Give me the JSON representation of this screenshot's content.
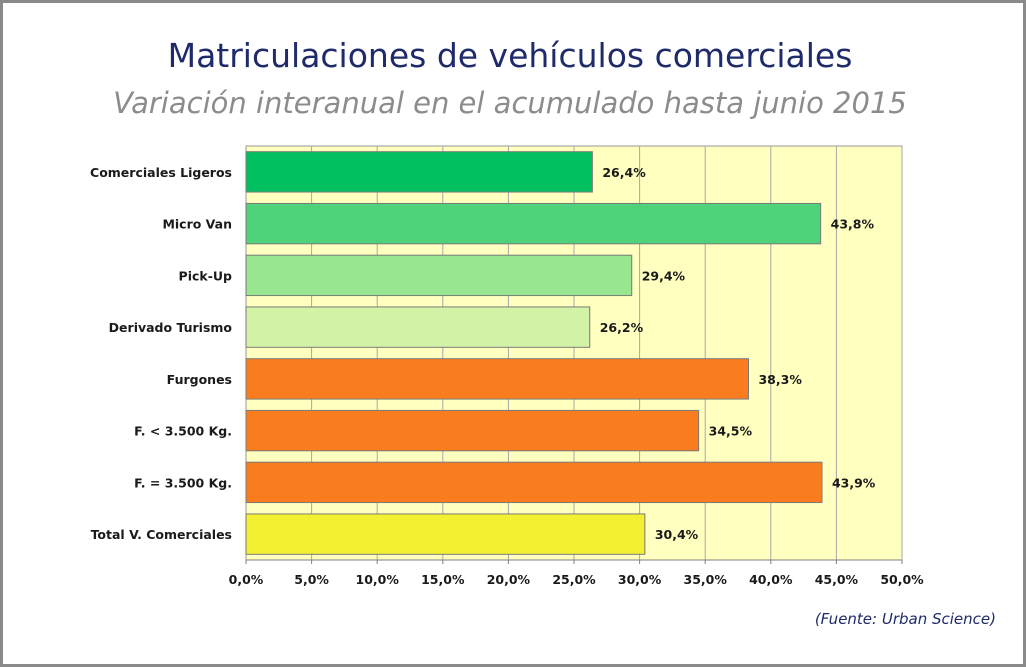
{
  "chart_data": {
    "type": "bar",
    "orientation": "horizontal",
    "title": "Matriculaciones de vehículos comerciales",
    "subtitle": "Variación interanual en el acumulado hasta junio 2015",
    "categories": [
      "Comerciales Ligeros",
      "Micro Van",
      "Pick-Up",
      "Derivado Turismo",
      "Furgones",
      "F. < 3.500 Kg.",
      "F. = 3.500 Kg.",
      "Total V. Comerciales"
    ],
    "values": [
      26.4,
      43.8,
      29.4,
      26.2,
      38.3,
      34.5,
      43.9,
      30.4
    ],
    "data_labels": [
      "26,4%",
      "43,8%",
      "29,4%",
      "26,2%",
      "38,3%",
      "34,5%",
      "43,9%",
      "30,4%"
    ],
    "bar_colors": [
      "#00c060",
      "#4fd37a",
      "#98e690",
      "#d2f3a6",
      "#f97d1f",
      "#f97d1f",
      "#f97d1f",
      "#f3f032"
    ],
    "xlim": [
      0,
      50
    ],
    "xticks": [
      0,
      5,
      10,
      15,
      20,
      25,
      30,
      35,
      40,
      45,
      50
    ],
    "xtick_labels": [
      "0,0%",
      "5,0%",
      "10,0%",
      "15,0%",
      "20,0%",
      "25,0%",
      "30,0%",
      "35,0%",
      "40,0%",
      "45,0%",
      "50,0%"
    ],
    "grid": true,
    "plot_background": "#ffffc0",
    "source": "(Fuente: Urban Science)"
  }
}
